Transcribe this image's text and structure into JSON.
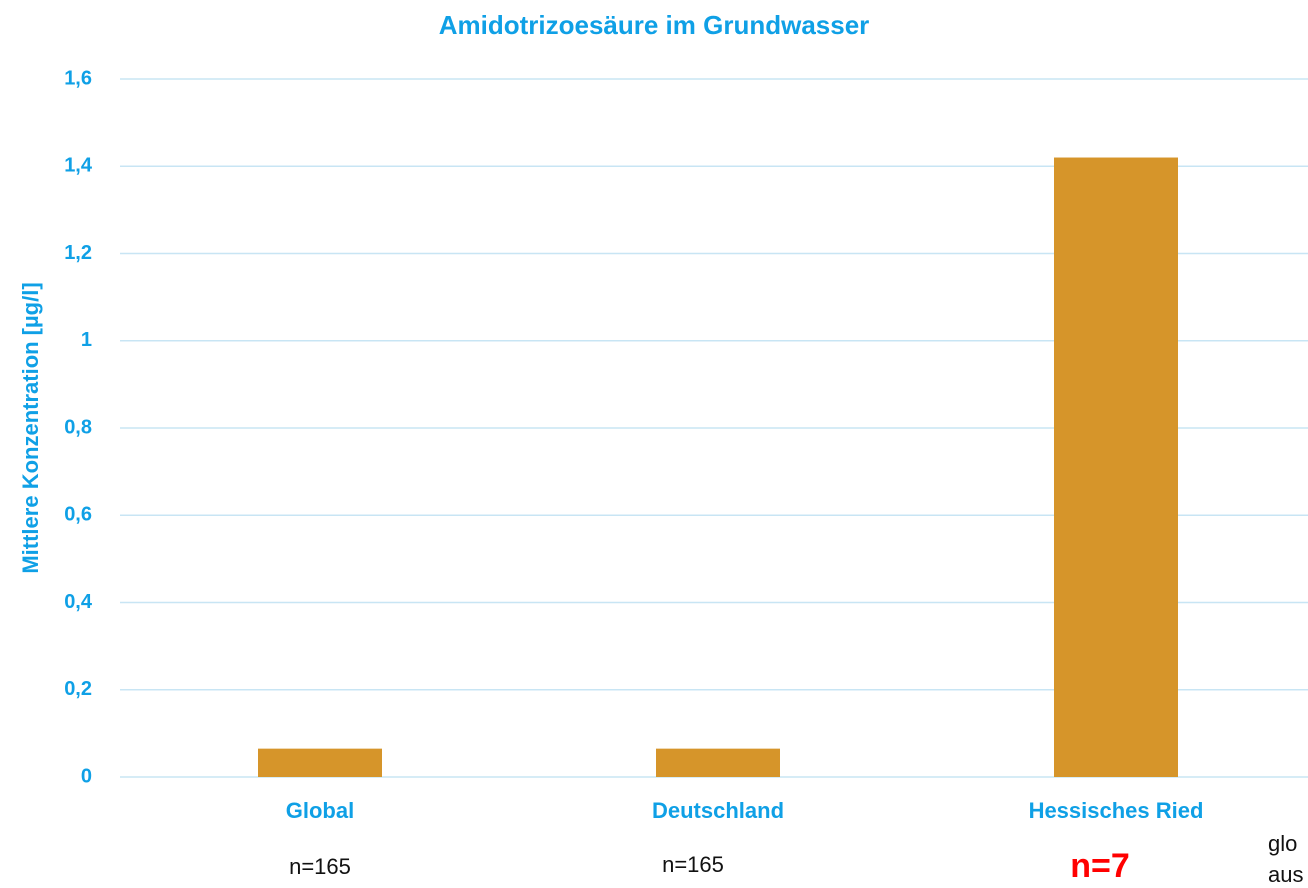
{
  "chart_data": {
    "type": "bar",
    "title": "Amidotrizoesäure im Grundwasser",
    "y_label": "Mittlere Konzentration [µg/l]",
    "categories": [
      "Global",
      "Deutschland",
      "Hessisches Ried"
    ],
    "values": [
      0.065,
      0.065,
      1.42
    ],
    "color": "#d6952a",
    "ylim": [
      0,
      1.6
    ],
    "yticks": [
      0,
      {
        "value": 0.2,
        "label": "0,2"
      },
      {
        "value": 0.4,
        "label": "0,4"
      },
      {
        "value": 0.6,
        "label": "0,6"
      },
      {
        "value": 0.8,
        "label": "0,8"
      },
      1,
      {
        "value": 1.2,
        "label": "1,2"
      },
      {
        "value": 1.4,
        "label": "1,4"
      },
      {
        "value": 1.6,
        "label": "1,6"
      }
    ],
    "grid": true,
    "annotations": [
      "n=165",
      "n=165",
      "n=7",
      "glo",
      "aus"
    ]
  }
}
